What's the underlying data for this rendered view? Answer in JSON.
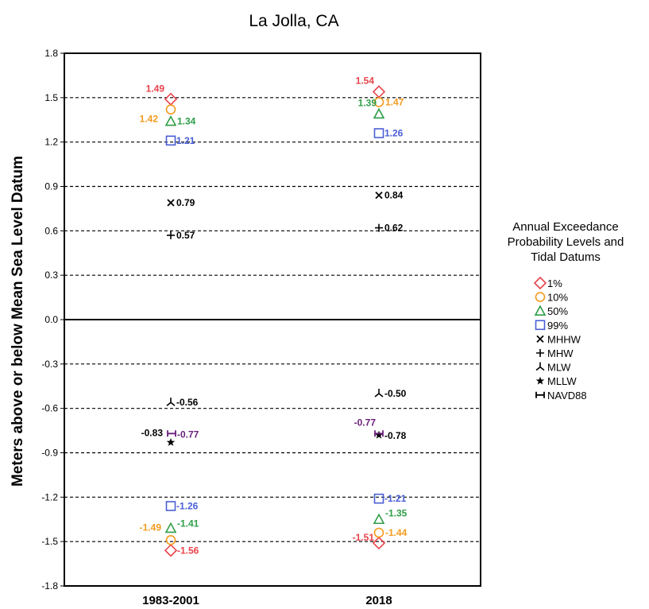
{
  "chart_data": {
    "type": "scatter",
    "title": "La Jolla, CA",
    "ylabel": "Meters above or below Mean Sea Level Datum",
    "xlabel": "",
    "categories": [
      "1983-2001",
      "2018"
    ],
    "ylim": [
      -1.8,
      1.8
    ],
    "yticks": [
      "1.8",
      "1.5",
      "1.2",
      "0.9",
      "0.6",
      "0.3",
      "0.0",
      "-0.3",
      "-0.6",
      "-0.9",
      "-1.2",
      "-1.5",
      "-1.8"
    ],
    "ytick_values": [
      1.8,
      1.5,
      1.2,
      0.9,
      0.6,
      0.3,
      0.0,
      -0.3,
      -0.6,
      -0.9,
      -1.2,
      -1.5,
      -1.8
    ],
    "grid": "dashed horizontal",
    "legend_title": "Annual Exceedance Probability Levels and Tidal Datums",
    "legend_position": "right",
    "series": [
      {
        "name": "1%",
        "marker": "diamond",
        "color": "#e8434b",
        "points": [
          {
            "category": "1983-2001",
            "value": 1.49,
            "label": "1.49"
          },
          {
            "category": "1983-2001",
            "value": -1.56,
            "label": "-1.56"
          },
          {
            "category": "2018",
            "value": 1.54,
            "label": "1.54"
          },
          {
            "category": "2018",
            "value": -1.51,
            "label": "-1.51"
          }
        ]
      },
      {
        "name": "10%",
        "marker": "circle",
        "color": "#f39a1e",
        "points": [
          {
            "category": "1983-2001",
            "value": 1.42,
            "label": "1.42"
          },
          {
            "category": "1983-2001",
            "value": -1.49,
            "label": "-1.49"
          },
          {
            "category": "2018",
            "value": 1.47,
            "label": "1.47"
          },
          {
            "category": "2018",
            "value": -1.44,
            "label": "-1.44"
          }
        ]
      },
      {
        "name": "50%",
        "marker": "triangle",
        "color": "#2e9e48",
        "points": [
          {
            "category": "1983-2001",
            "value": 1.34,
            "label": "1.34"
          },
          {
            "category": "1983-2001",
            "value": -1.41,
            "label": "-1.41"
          },
          {
            "category": "2018",
            "value": 1.39,
            "label": "1.39"
          },
          {
            "category": "2018",
            "value": -1.35,
            "label": "-1.35"
          }
        ]
      },
      {
        "name": "99%",
        "marker": "square",
        "color": "#4a5fd6",
        "points": [
          {
            "category": "1983-2001",
            "value": 1.21,
            "label": "1.21"
          },
          {
            "category": "1983-2001",
            "value": -1.26,
            "label": "-1.26"
          },
          {
            "category": "2018",
            "value": 1.26,
            "label": "1.26"
          },
          {
            "category": "2018",
            "value": -1.21,
            "label": "-1.21"
          }
        ]
      },
      {
        "name": "MHHW",
        "marker": "x",
        "color": "#000000",
        "points": [
          {
            "category": "1983-2001",
            "value": 0.79,
            "label": "0.79"
          },
          {
            "category": "2018",
            "value": 0.84,
            "label": "0.84"
          }
        ]
      },
      {
        "name": "MHW",
        "marker": "plus",
        "color": "#000000",
        "points": [
          {
            "category": "1983-2001",
            "value": 0.57,
            "label": "0.57"
          },
          {
            "category": "2018",
            "value": 0.62,
            "label": "0.62"
          }
        ]
      },
      {
        "name": "MLW",
        "marker": "tri",
        "color": "#000000",
        "points": [
          {
            "category": "1983-2001",
            "value": -0.56,
            "label": "-0.56"
          },
          {
            "category": "2018",
            "value": -0.5,
            "label": "-0.50"
          }
        ]
      },
      {
        "name": "MLLW",
        "marker": "star",
        "color": "#000000",
        "points": [
          {
            "category": "1983-2001",
            "value": -0.83,
            "label": "-0.83"
          },
          {
            "category": "2018",
            "value": -0.78,
            "label": "-0.78"
          }
        ]
      },
      {
        "name": "NAVD88",
        "marker": "bowtie",
        "color": "#6a1f7a",
        "points": [
          {
            "category": "1983-2001",
            "value": -0.77,
            "label": "-0.77"
          },
          {
            "category": "2018",
            "value": -0.77,
            "label": "-0.77"
          }
        ]
      }
    ]
  }
}
